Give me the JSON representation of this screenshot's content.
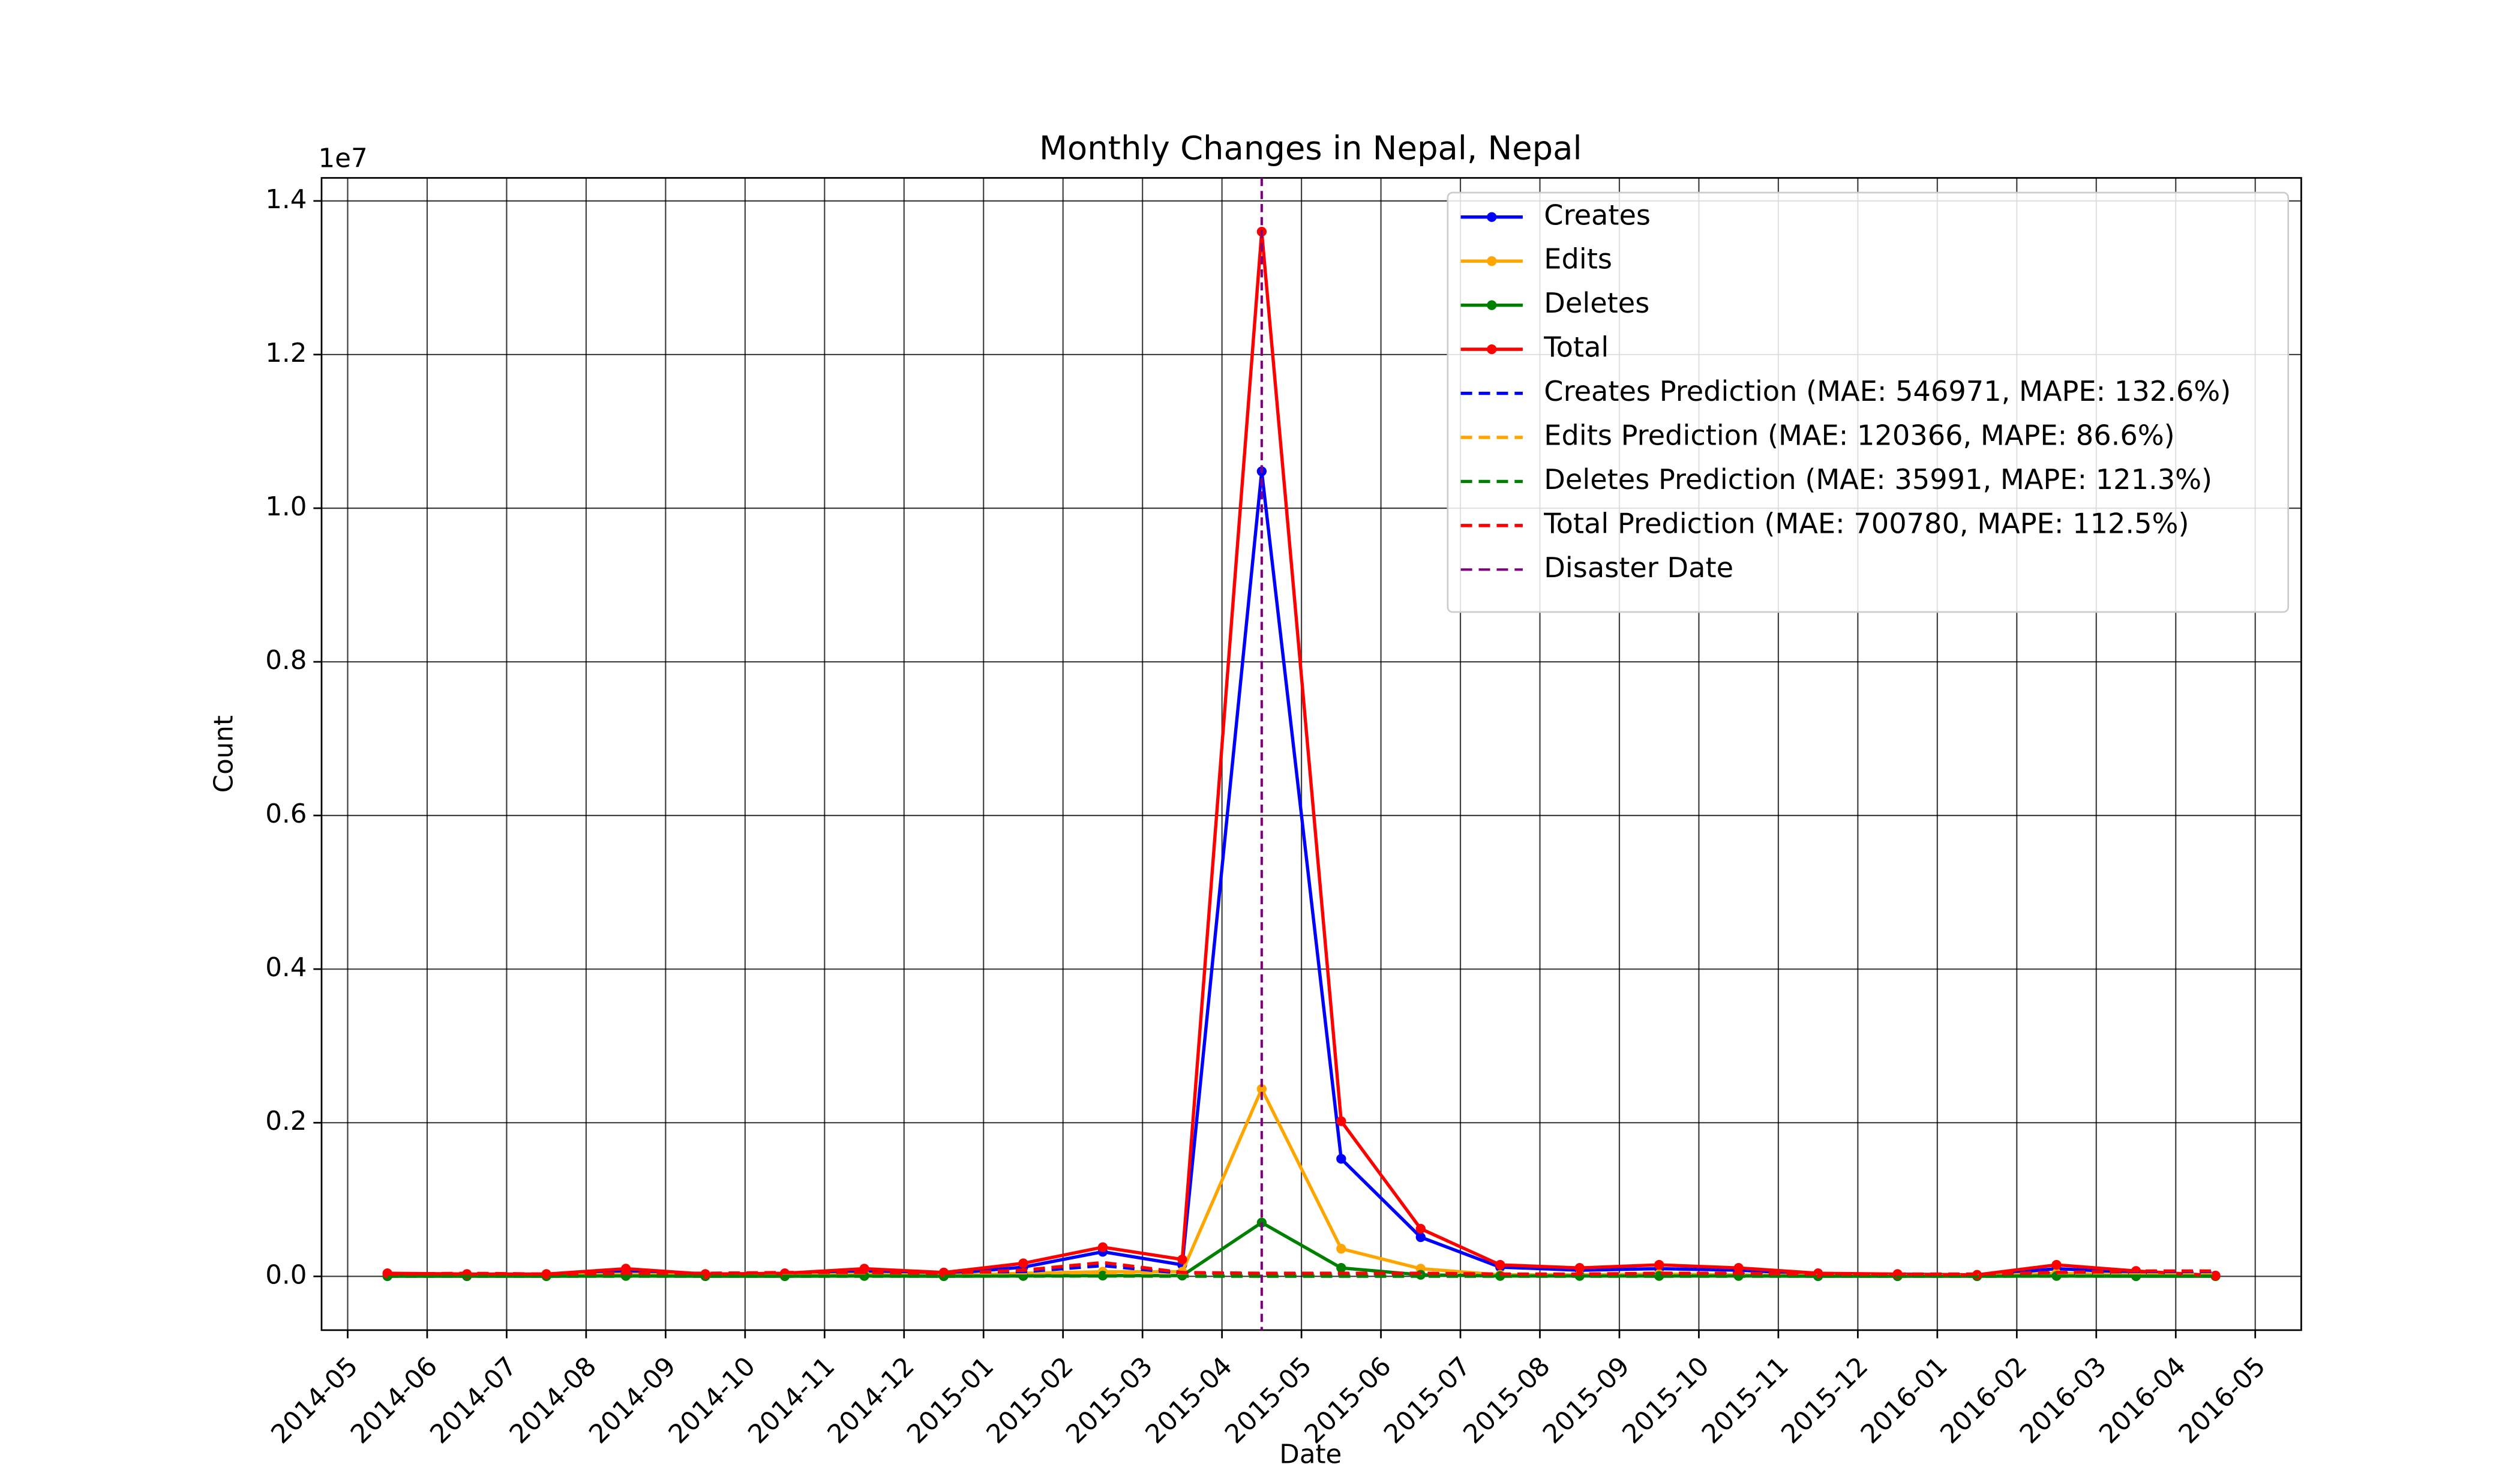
{
  "chart_data": {
    "type": "line",
    "title": "Monthly Changes in Nepal, Nepal",
    "x_label": "Date",
    "y_label": "Count",
    "y_offset_label": "1e7",
    "x": [
      "2014-05",
      "2014-06",
      "2014-07",
      "2014-08",
      "2014-09",
      "2014-10",
      "2014-11",
      "2014-12",
      "2015-01",
      "2015-02",
      "2015-03",
      "2015-04",
      "2015-05",
      "2015-06",
      "2015-07",
      "2015-08",
      "2015-09",
      "2015-10",
      "2015-11",
      "2015-12",
      "2016-01",
      "2016-02",
      "2016-03",
      "2016-04"
    ],
    "xticks": [
      "2014-05",
      "2014-06",
      "2014-07",
      "2014-08",
      "2014-09",
      "2014-10",
      "2014-11",
      "2014-12",
      "2015-01",
      "2015-02",
      "2015-03",
      "2015-04",
      "2015-05",
      "2015-06",
      "2015-07",
      "2015-08",
      "2015-09",
      "2015-10",
      "2015-11",
      "2015-12",
      "2016-01",
      "2016-02",
      "2016-03",
      "2016-04",
      "2016-05"
    ],
    "ylim": [
      -700000,
      14300000
    ],
    "yticks": [
      {
        "value": 0,
        "label": "0.0"
      },
      {
        "value": 2000000,
        "label": "0.2"
      },
      {
        "value": 4000000,
        "label": "0.4"
      },
      {
        "value": 6000000,
        "label": "0.6"
      },
      {
        "value": 8000000,
        "label": "0.8"
      },
      {
        "value": 10000000,
        "label": "1.0"
      },
      {
        "value": 12000000,
        "label": "1.2"
      },
      {
        "value": 14000000,
        "label": "1.4"
      }
    ],
    "grid": true,
    "legend": "upper right",
    "series": [
      {
        "name": "Creates",
        "color": "#0000ff",
        "style": "solid",
        "values": [
          20000,
          20000,
          20000,
          60000,
          20000,
          30000,
          60000,
          30000,
          120000,
          320000,
          150000,
          10480000,
          1530000,
          510000,
          120000,
          80000,
          100000,
          80000,
          30000,
          20000,
          10000,
          100000,
          50000,
          10000
        ]
      },
      {
        "name": "Edits",
        "color": "#ffa500",
        "style": "solid",
        "values": [
          10000,
          10000,
          10000,
          30000,
          10000,
          10000,
          30000,
          10000,
          40000,
          60000,
          60000,
          2440000,
          360000,
          100000,
          20000,
          20000,
          30000,
          20000,
          10000,
          10000,
          5000,
          40000,
          20000,
          5000
        ]
      },
      {
        "name": "Deletes",
        "color": "#008000",
        "style": "solid",
        "values": [
          2000,
          2000,
          2000,
          5000,
          2000,
          2000,
          5000,
          2000,
          5000,
          10000,
          10000,
          700000,
          110000,
          20000,
          5000,
          5000,
          5000,
          5000,
          2000,
          2000,
          2000,
          5000,
          2000,
          2000
        ]
      },
      {
        "name": "Total",
        "color": "#ff0000",
        "style": "solid",
        "values": [
          40000,
          30000,
          30000,
          100000,
          30000,
          40000,
          100000,
          50000,
          170000,
          380000,
          220000,
          13600000,
          2020000,
          620000,
          150000,
          110000,
          150000,
          110000,
          40000,
          30000,
          20000,
          150000,
          70000,
          10000
        ]
      },
      {
        "name": "Creates Prediction (MAE: 546971, MAPE: 132.6%)",
        "color": "#0000ff",
        "style": "dashed",
        "values": [
          20000,
          30000,
          20000,
          30000,
          30000,
          40000,
          40000,
          30000,
          60000,
          140000,
          40000,
          30000,
          30000,
          30000,
          20000,
          20000,
          30000,
          30000,
          20000,
          20000,
          20000,
          40000,
          50000,
          50000
        ]
      },
      {
        "name": "Edits Prediction (MAE: 120366, MAPE: 86.6%)",
        "color": "#ffa500",
        "style": "dashed",
        "values": [
          10000,
          10000,
          10000,
          10000,
          10000,
          10000,
          10000,
          10000,
          20000,
          30000,
          10000,
          10000,
          10000,
          10000,
          10000,
          10000,
          10000,
          10000,
          10000,
          10000,
          10000,
          10000,
          20000,
          20000
        ]
      },
      {
        "name": "Deletes Prediction (MAE: 35991, MAPE: 121.3%)",
        "color": "#008000",
        "style": "dashed",
        "values": [
          2000,
          2000,
          2000,
          2000,
          2000,
          2000,
          2000,
          2000,
          3000,
          5000,
          2000,
          2000,
          2000,
          2000,
          2000,
          2000,
          2000,
          2000,
          2000,
          2000,
          2000,
          3000,
          3000,
          3000
        ]
      },
      {
        "name": "Total Prediction (MAE: 700780, MAPE: 112.5%)",
        "color": "#ff0000",
        "style": "dashed",
        "values": [
          30000,
          40000,
          30000,
          40000,
          40000,
          50000,
          50000,
          40000,
          80000,
          180000,
          50000,
          40000,
          40000,
          40000,
          30000,
          30000,
          40000,
          40000,
          30000,
          30000,
          30000,
          50000,
          70000,
          70000
        ]
      }
    ],
    "disaster_line": {
      "name": "Disaster Date",
      "x": "2015-04",
      "color": "#800080"
    }
  }
}
